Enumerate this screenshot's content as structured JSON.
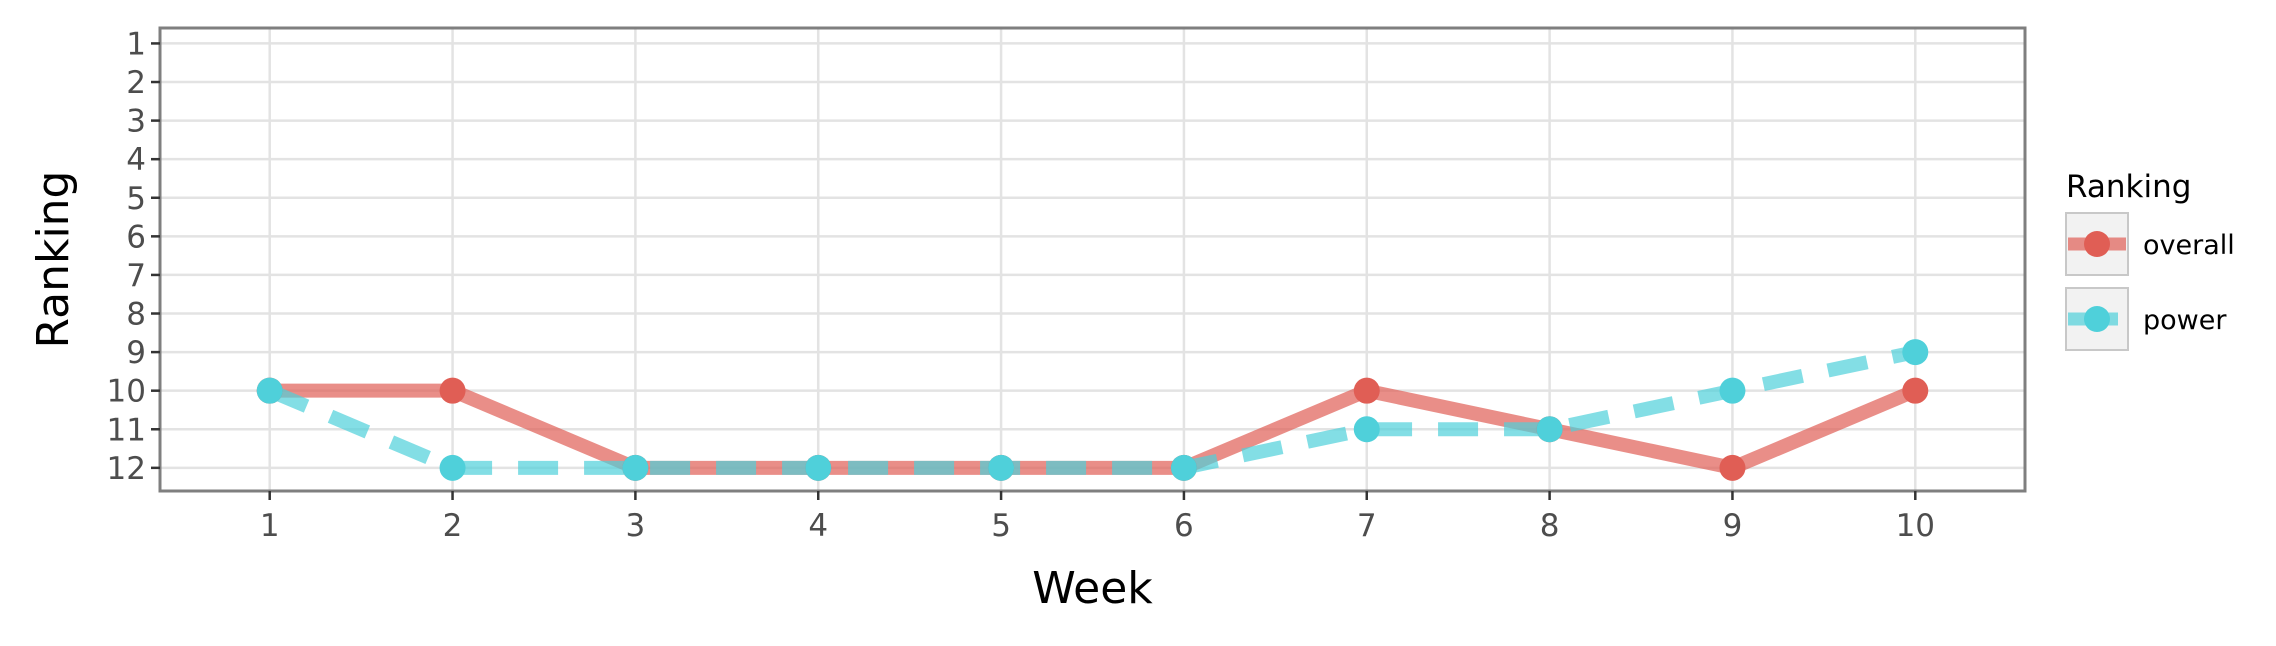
{
  "chart_data": {
    "type": "line",
    "title": "",
    "xlabel": "Week",
    "ylabel": "Ranking",
    "x": [
      1,
      2,
      3,
      4,
      5,
      6,
      7,
      8,
      9,
      10
    ],
    "xlim": [
      0.4,
      10.6
    ],
    "ylim": [
      12.6,
      0.6
    ],
    "y_reversed": true,
    "xticks": [
      "1",
      "2",
      "3",
      "4",
      "5",
      "6",
      "7",
      "8",
      "9",
      "10"
    ],
    "yticks": [
      "1",
      "2",
      "3",
      "4",
      "5",
      "6",
      "7",
      "8",
      "9",
      "10",
      "11",
      "12"
    ],
    "grid": true,
    "legend": {
      "title": "Ranking",
      "position": "right"
    },
    "series": [
      {
        "name": "overall",
        "values": [
          10,
          10,
          12,
          12,
          12,
          12,
          10,
          11,
          12,
          10
        ],
        "color": "#e05e55",
        "line_style": "solid"
      },
      {
        "name": "power",
        "values": [
          10,
          12,
          12,
          12,
          12,
          12,
          11,
          11,
          10,
          9
        ],
        "color": "#4fd0da",
        "line_style": "dashed"
      }
    ]
  }
}
